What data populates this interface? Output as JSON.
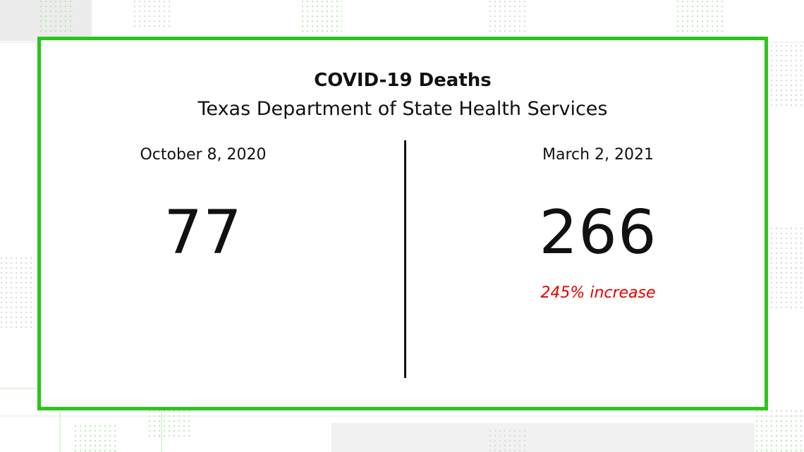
{
  "header": {
    "title": "COVID-19 Deaths",
    "subtitle": "Texas Department of State Health Services"
  },
  "left": {
    "date": "October 8, 2020",
    "value": "77"
  },
  "right": {
    "date": "March 2, 2021",
    "value": "266",
    "note": "245% increase"
  },
  "colors": {
    "frame": "#28c619",
    "note": "#e60000",
    "text": "#111111"
  }
}
